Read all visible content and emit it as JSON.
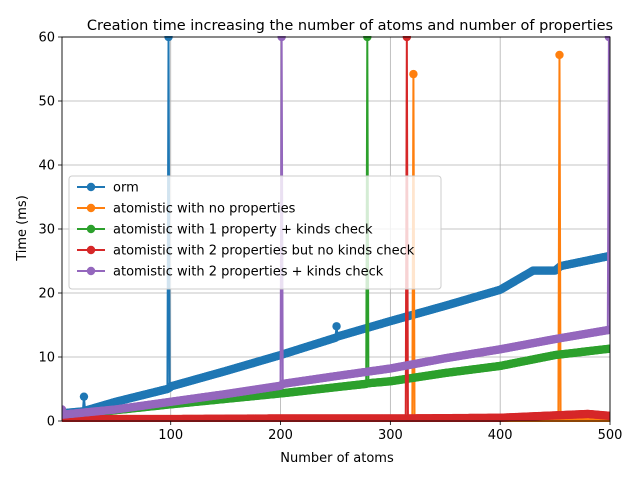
{
  "chart_data": {
    "type": "line",
    "title": "Creation time increasing the number of atoms and number of properties",
    "xlabel": "Number of atoms",
    "ylabel": "Time (ms)",
    "xlim": [
      1,
      500
    ],
    "ylim": [
      0,
      60
    ],
    "xticks": [
      100,
      200,
      300,
      400,
      500
    ],
    "yticks": [
      0,
      10,
      20,
      30,
      40,
      50,
      60
    ],
    "grid": true,
    "legend_position": "center-left",
    "marker": "circle",
    "series": [
      {
        "name": "orm",
        "color": "#1f77b4",
        "points": [
          [
            1,
            1.2
          ],
          [
            20,
            1.5
          ],
          [
            21,
            3.8
          ],
          [
            22,
            1.6
          ],
          [
            50,
            3.0
          ],
          [
            97,
            5.0
          ],
          [
            98,
            60
          ],
          [
            99,
            5.2
          ],
          [
            100,
            5.4
          ],
          [
            150,
            7.8
          ],
          [
            200,
            10.3
          ],
          [
            250,
            13.0
          ],
          [
            251,
            14.8
          ],
          [
            252,
            13.2
          ],
          [
            300,
            15.6
          ],
          [
            350,
            18.0
          ],
          [
            400,
            20.5
          ],
          [
            430,
            23.5
          ],
          [
            450,
            23.5
          ],
          [
            455,
            24.2
          ],
          [
            500,
            25.8
          ]
        ]
      },
      {
        "name": "atomistic with no properties",
        "color": "#ff7f0e",
        "points": [
          [
            1,
            0.3
          ],
          [
            100,
            0.3
          ],
          [
            200,
            0.3
          ],
          [
            320,
            0.3
          ],
          [
            321,
            54.2
          ],
          [
            322,
            0.3
          ],
          [
            400,
            0.3
          ],
          [
            453,
            0.3
          ],
          [
            454,
            57.2
          ],
          [
            455,
            0.3
          ],
          [
            500,
            0.4
          ]
        ]
      },
      {
        "name": "atomistic with 1 property + kinds check",
        "color": "#2ca02c",
        "points": [
          [
            1,
            0.8
          ],
          [
            100,
            2.6
          ],
          [
            200,
            4.3
          ],
          [
            278,
            5.8
          ],
          [
            279,
            60
          ],
          [
            280,
            5.9
          ],
          [
            300,
            6.2
          ],
          [
            350,
            7.5
          ],
          [
            400,
            8.6
          ],
          [
            450,
            10.3
          ],
          [
            500,
            11.3
          ]
        ]
      },
      {
        "name": "atomistic with 2 properties but no kinds check",
        "color": "#d62728",
        "points": [
          [
            1,
            0.3
          ],
          [
            100,
            0.3
          ],
          [
            200,
            0.4
          ],
          [
            314,
            0.4
          ],
          [
            315,
            60
          ],
          [
            316,
            0.4
          ],
          [
            400,
            0.5
          ],
          [
            480,
            1.1
          ],
          [
            500,
            0.8
          ]
        ]
      },
      {
        "name": "atomistic with 2 properties + kinds check",
        "color": "#9467bd",
        "points": [
          [
            1,
            1.8
          ],
          [
            2,
            1.0
          ],
          [
            50,
            1.8
          ],
          [
            100,
            3.0
          ],
          [
            150,
            4.2
          ],
          [
            200,
            5.5
          ],
          [
            201,
            60
          ],
          [
            202,
            5.8
          ],
          [
            250,
            7.0
          ],
          [
            300,
            8.2
          ],
          [
            350,
            9.8
          ],
          [
            400,
            11.2
          ],
          [
            450,
            12.8
          ],
          [
            498,
            14.2
          ],
          [
            499,
            60
          ],
          [
            500,
            14.3
          ]
        ]
      }
    ]
  }
}
